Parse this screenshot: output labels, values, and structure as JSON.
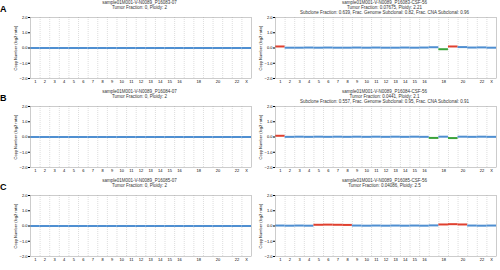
{
  "chart_data": [
    {
      "type": "line",
      "panel_label": "A",
      "title": "sample01M001-V-N0089_P16083-07",
      "subtitle": "Tumor Fraction: 0, Ploidy: 2",
      "categories": [
        "1",
        "2",
        "3",
        "4",
        "5",
        "6",
        "7",
        "8",
        "9",
        "10",
        "11",
        "12",
        "13",
        "14",
        "15",
        "16",
        null,
        "18",
        null,
        "20",
        null,
        "22",
        "X"
      ],
      "values": [
        0,
        0,
        0,
        0,
        0,
        0,
        0,
        0,
        0,
        0,
        0,
        0,
        0,
        0,
        0,
        0,
        0,
        0,
        0,
        0,
        0,
        0,
        0
      ],
      "colors": [
        "#4f8fd1",
        "#4f8fd1",
        "#4f8fd1",
        "#4f8fd1",
        "#4f8fd1",
        "#4f8fd1",
        "#4f8fd1",
        "#4f8fd1",
        "#4f8fd1",
        "#4f8fd1",
        "#4f8fd1",
        "#4f8fd1",
        "#4f8fd1",
        "#4f8fd1",
        "#4f8fd1",
        "#4f8fd1",
        "#4f8fd1",
        "#4f8fd1",
        "#4f8fd1",
        "#4f8fd1",
        "#4f8fd1",
        "#4f8fd1",
        "#4f8fd1"
      ],
      "y_label": "Copy Number (log2 ratio)",
      "ylim": [
        -2,
        2
      ],
      "yticks": [
        -2,
        -1,
        0,
        1,
        2
      ]
    },
    {
      "type": "line",
      "title": "sample01M001-V-N0089_P16083-CSF-56",
      "subtitle": "Tumor Fraction: 0.07675, Ploidy: 2.21\nSubclone Fraction: 0.639, Frac. Genome Subclonal: 0.82, Frac. CNA Subclonal: 0.96",
      "categories": [
        "1",
        "2",
        "3",
        "4",
        "5",
        "6",
        "7",
        "8",
        "9",
        "10",
        "11",
        "12",
        "13",
        "14",
        "15",
        "16",
        null,
        "18",
        null,
        "20",
        null,
        "22",
        "X"
      ],
      "values": [
        0.1,
        0.02,
        0.02,
        0.03,
        0.02,
        0.03,
        0.02,
        0.02,
        0.03,
        0.02,
        0.03,
        0.02,
        0.02,
        0.03,
        0.02,
        0.03,
        0.05,
        -0.08,
        0.1,
        0.06,
        0.03,
        0.04,
        0.02
      ],
      "colors": [
        "#e0402f",
        "#4f8fd1",
        "#4f8fd1",
        "#4f8fd1",
        "#4f8fd1",
        "#4f8fd1",
        "#4f8fd1",
        "#4f8fd1",
        "#4f8fd1",
        "#4f8fd1",
        "#4f8fd1",
        "#4f8fd1",
        "#4f8fd1",
        "#4f8fd1",
        "#4f8fd1",
        "#4f8fd1",
        "#4f8fd1",
        "#3aa33a",
        "#e0402f",
        "#4f8fd1",
        "#4f8fd1",
        "#4f8fd1",
        "#4f8fd1"
      ],
      "y_label": "Copy Number (log2 ratio)",
      "ylim": [
        -2,
        2
      ],
      "yticks": [
        -2,
        -1,
        0,
        1,
        2
      ]
    },
    {
      "type": "line",
      "panel_label": "B",
      "title": "sample01M001-V-N0089_P16084-07",
      "subtitle": "Tumor Fraction: 0, Ploidy: 2",
      "categories": [
        "1",
        "2",
        "3",
        "4",
        "5",
        "6",
        "7",
        "8",
        "9",
        "10",
        "11",
        "12",
        "13",
        "14",
        "15",
        "16",
        null,
        "18",
        null,
        "20",
        null,
        "22",
        "X"
      ],
      "values": [
        0,
        0,
        0,
        0,
        0,
        0,
        0,
        0,
        0,
        0,
        0,
        0,
        0,
        0,
        0,
        0,
        0,
        0,
        0,
        0,
        0,
        0,
        0
      ],
      "colors": [
        "#4f8fd1",
        "#4f8fd1",
        "#4f8fd1",
        "#4f8fd1",
        "#4f8fd1",
        "#4f8fd1",
        "#4f8fd1",
        "#4f8fd1",
        "#4f8fd1",
        "#4f8fd1",
        "#4f8fd1",
        "#4f8fd1",
        "#4f8fd1",
        "#4f8fd1",
        "#4f8fd1",
        "#4f8fd1",
        "#4f8fd1",
        "#4f8fd1",
        "#4f8fd1",
        "#4f8fd1",
        "#4f8fd1",
        "#4f8fd1",
        "#4f8fd1"
      ],
      "y_label": "Copy Number (log2 ratio)",
      "ylim": [
        -2,
        2
      ],
      "yticks": [
        -2,
        -1,
        0,
        1,
        2
      ]
    },
    {
      "type": "line",
      "title": "sample01M001-V-N0089_P16084-CSF-56",
      "subtitle": "Tumor Fraction: 0.0441, Ploidy: 2.1\nSubclone Fraction: 0.557, Frac. Genome Subclonal: 0.95, Frac. CNA Subclonal: 0.91",
      "categories": [
        "1",
        "2",
        "3",
        "4",
        "5",
        "6",
        "7",
        "8",
        "9",
        "10",
        "11",
        "12",
        "13",
        "14",
        "15",
        "16",
        null,
        "18",
        null,
        "20",
        null,
        "22",
        "X"
      ],
      "values": [
        0.08,
        0.01,
        0.02,
        0.01,
        0.02,
        0.01,
        0.02,
        0.01,
        0.02,
        0.01,
        0.02,
        0.01,
        0.02,
        0.01,
        0.02,
        0.01,
        -0.06,
        0.02,
        -0.07,
        0.02,
        0.01,
        0.02,
        0.01
      ],
      "colors": [
        "#e0402f",
        "#4f8fd1",
        "#4f8fd1",
        "#4f8fd1",
        "#4f8fd1",
        "#4f8fd1",
        "#4f8fd1",
        "#4f8fd1",
        "#4f8fd1",
        "#4f8fd1",
        "#4f8fd1",
        "#4f8fd1",
        "#4f8fd1",
        "#4f8fd1",
        "#4f8fd1",
        "#4f8fd1",
        "#3aa33a",
        "#4f8fd1",
        "#3aa33a",
        "#4f8fd1",
        "#4f8fd1",
        "#4f8fd1",
        "#4f8fd1"
      ],
      "y_label": "Copy Number (log2 ratio)",
      "ylim": [
        -2,
        2
      ],
      "yticks": [
        -2,
        -1,
        0,
        1,
        2
      ]
    },
    {
      "type": "line",
      "panel_label": "C",
      "title": "sample01M001-V-N0089_P16085-07",
      "subtitle": "Tumor Fraction: 0, Ploidy: 2",
      "categories": [
        "1",
        "2",
        "3",
        "4",
        "5",
        "6",
        "7",
        "8",
        "9",
        "10",
        "11",
        "12",
        "13",
        "14",
        "15",
        "16",
        null,
        "18",
        null,
        "20",
        null,
        "22",
        "X"
      ],
      "values": [
        0,
        0,
        0,
        0,
        0,
        0,
        0,
        0,
        0,
        0,
        0,
        0,
        0,
        0,
        0,
        0,
        0,
        0,
        0,
        0,
        0,
        0,
        0
      ],
      "colors": [
        "#4f8fd1",
        "#4f8fd1",
        "#4f8fd1",
        "#4f8fd1",
        "#4f8fd1",
        "#4f8fd1",
        "#4f8fd1",
        "#4f8fd1",
        "#4f8fd1",
        "#4f8fd1",
        "#4f8fd1",
        "#4f8fd1",
        "#4f8fd1",
        "#4f8fd1",
        "#4f8fd1",
        "#4f8fd1",
        "#4f8fd1",
        "#4f8fd1",
        "#4f8fd1",
        "#4f8fd1",
        "#4f8fd1",
        "#4f8fd1",
        "#4f8fd1"
      ],
      "y_label": "Copy Number (log2 ratio)",
      "ylim": [
        -2,
        2
      ],
      "yticks": [
        -2,
        -1,
        0,
        1,
        2
      ]
    },
    {
      "type": "line",
      "title": "sample01M001-V-N0089_P16085-CSF-56",
      "subtitle": "Tumor Fraction: 0.04086, Ploidy: 2.5",
      "categories": [
        "1",
        "2",
        "3",
        "4",
        "5",
        "6",
        "7",
        "8",
        "9",
        "10",
        "11",
        "12",
        "13",
        "14",
        "15",
        "16",
        null,
        "18",
        null,
        "20",
        null,
        "22",
        "X"
      ],
      "values": [
        0.03,
        0.02,
        0.03,
        0.02,
        0.08,
        0.09,
        0.08,
        0.07,
        0.03,
        0.02,
        0.03,
        0.02,
        0.03,
        0.02,
        0.03,
        0.02,
        0.04,
        0.1,
        0.12,
        0.1,
        0.03,
        0.02,
        0.03
      ],
      "colors": [
        "#4f8fd1",
        "#4f8fd1",
        "#4f8fd1",
        "#4f8fd1",
        "#e0402f",
        "#e0402f",
        "#e0402f",
        "#e0402f",
        "#4f8fd1",
        "#4f8fd1",
        "#4f8fd1",
        "#4f8fd1",
        "#4f8fd1",
        "#4f8fd1",
        "#4f8fd1",
        "#4f8fd1",
        "#4f8fd1",
        "#e0402f",
        "#e0402f",
        "#e0402f",
        "#4f8fd1",
        "#4f8fd1",
        "#4f8fd1"
      ],
      "y_label": "Copy Number (log2 ratio)",
      "ylim": [
        -2,
        2
      ],
      "yticks": [
        -2,
        -1,
        0,
        1,
        2
      ]
    }
  ]
}
